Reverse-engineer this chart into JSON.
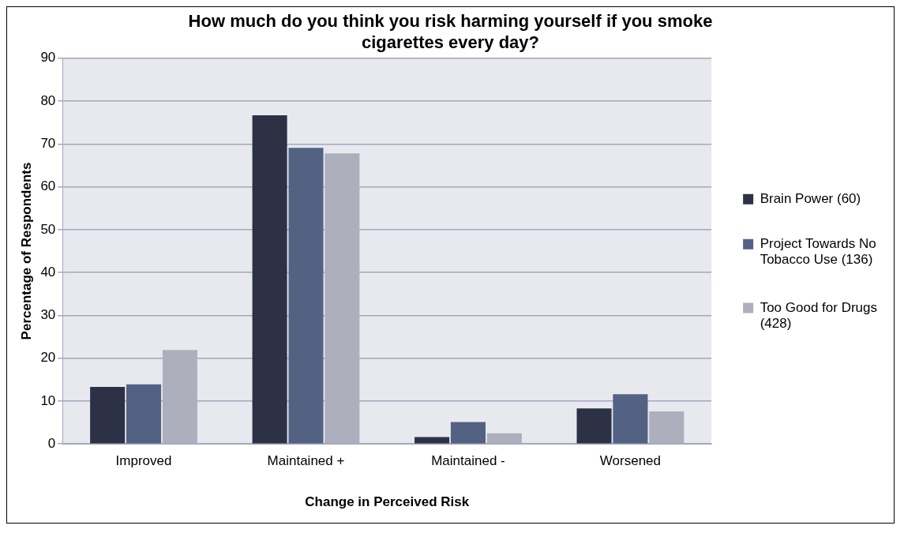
{
  "chart_data": {
    "type": "bar",
    "title": "How much do you think you risk harming yourself if you smoke cigarettes every day?",
    "xlabel": "Change in Perceived Risk",
    "ylabel": "Percentage of Respondents",
    "categories": [
      "Improved",
      "Maintained +",
      "Maintained -",
      "Worsened"
    ],
    "series": [
      {
        "name": "Brain Power (60)",
        "color": "#2c3145",
        "values": [
          13.3,
          76.7,
          1.6,
          8.3
        ]
      },
      {
        "name": "Project Towards No Tobacco Use (136)",
        "color": "#536183",
        "values": [
          13.9,
          69.1,
          5.1,
          11.6
        ]
      },
      {
        "name": "Too Good for Drugs (428)",
        "color": "#adb0bc",
        "values": [
          21.9,
          67.8,
          2.5,
          7.6
        ]
      }
    ],
    "ylim": [
      0,
      90
    ],
    "yticks": [
      0,
      10,
      20,
      30,
      40,
      50,
      60,
      70,
      80,
      90
    ],
    "grid": "y",
    "legend": "right"
  }
}
